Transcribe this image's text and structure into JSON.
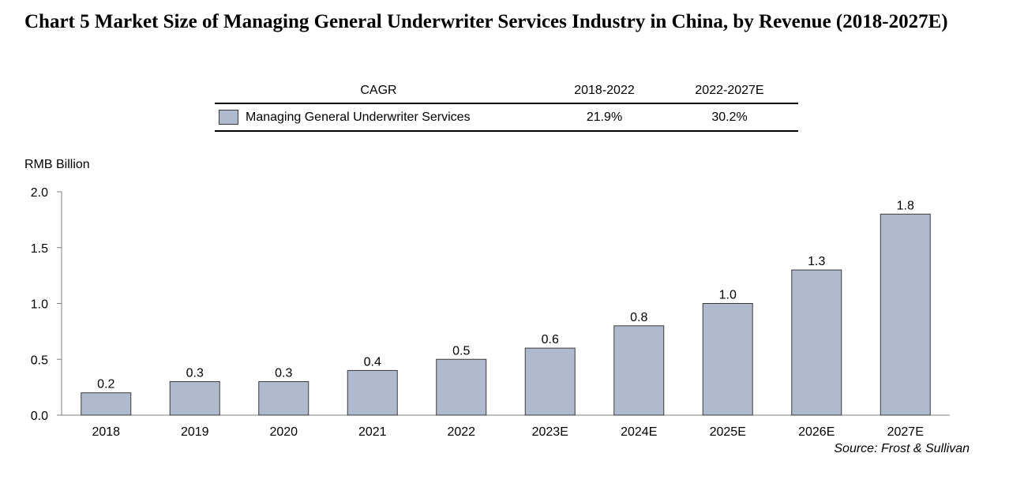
{
  "title": "Chart 5 Market Size of Managing General Underwriter Services Industry in China, by Revenue (2018-2027E)",
  "cagr_table": {
    "header_label": "CAGR",
    "col1_header": "2018-2022",
    "col2_header": "2022-2027E",
    "row_label": "Managing General Underwriter Services",
    "col1_value": "21.9%",
    "col2_value": "30.2%"
  },
  "source": "Source: Frost & Sullivan",
  "colors": {
    "bar_fill": "#b0bace",
    "bar_stroke": "#3a3a3a",
    "axis": "#7f7f7f"
  },
  "chart_data": {
    "type": "bar",
    "ylabel": "RMB Billion",
    "xlabel": "",
    "ylim": [
      0,
      2.0
    ],
    "yticks": [
      "0.0",
      "0.5",
      "1.0",
      "1.5",
      "2.0"
    ],
    "categories": [
      "2018",
      "2019",
      "2020",
      "2021",
      "2022",
      "2023E",
      "2024E",
      "2025E",
      "2026E",
      "2027E"
    ],
    "values": [
      0.2,
      0.3,
      0.3,
      0.4,
      0.5,
      0.6,
      0.8,
      1.0,
      1.3,
      1.8
    ],
    "data_labels": [
      "0.2",
      "0.3",
      "0.3",
      "0.4",
      "0.5",
      "0.6",
      "0.8",
      "1.0",
      "1.3",
      "1.8"
    ],
    "series": [
      {
        "name": "Managing General Underwriter Services",
        "values": [
          0.2,
          0.3,
          0.3,
          0.4,
          0.5,
          0.6,
          0.8,
          1.0,
          1.3,
          1.8
        ]
      }
    ],
    "grid": false,
    "legend": "table-top"
  }
}
